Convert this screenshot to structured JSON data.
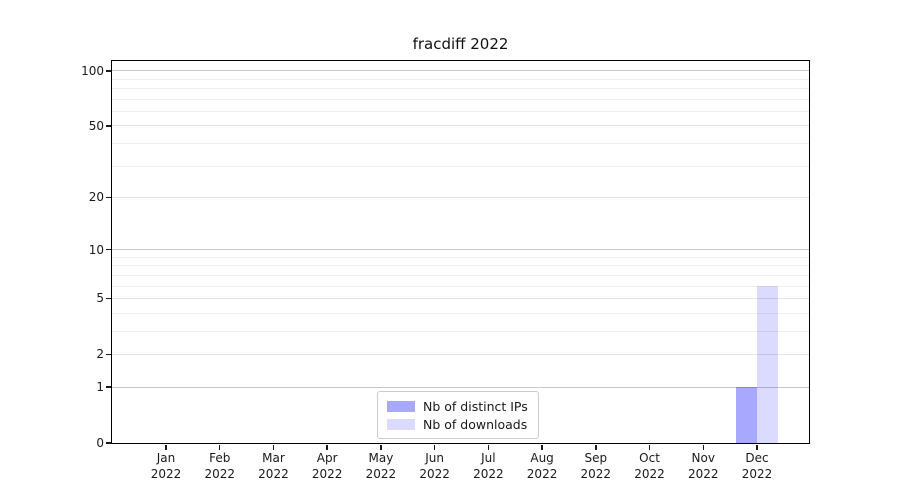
{
  "chart_data": {
    "type": "bar",
    "title": "fracdiff 2022",
    "categories": [
      "Jan 2022",
      "Feb 2022",
      "Mar 2022",
      "Apr 2022",
      "May 2022",
      "Jun 2022",
      "Jul 2022",
      "Aug 2022",
      "Sep 2022",
      "Oct 2022",
      "Nov 2022",
      "Dec 2022"
    ],
    "series": [
      {
        "name": "Nb of distinct IPs",
        "color": "rgba(0,0,255,0.34)",
        "values": [
          0,
          0,
          0,
          0,
          0,
          0,
          0,
          0,
          0,
          0,
          0,
          1
        ]
      },
      {
        "name": "Nb of downloads",
        "color": "rgba(0,0,255,0.14)",
        "values": [
          0,
          0,
          0,
          0,
          0,
          0,
          0,
          0,
          0,
          0,
          0,
          6
        ]
      }
    ],
    "y_scale": "log10(1+v)",
    "y_ticks": [
      0,
      1,
      2,
      5,
      10,
      20,
      50,
      100
    ],
    "ylim": [
      0,
      113
    ],
    "xlabel": "",
    "ylabel": "",
    "legend_position": "bottom-center",
    "grid": {
      "major": {
        "values": [
          1,
          10,
          100
        ],
        "color": "#c6c6c6"
      },
      "labeled_minor": {
        "values": [
          2,
          5,
          20,
          50
        ],
        "color": "#e4e4e4"
      },
      "minor": {
        "values": [
          3,
          4,
          6,
          7,
          8,
          9,
          30,
          40,
          60,
          70,
          80,
          90
        ],
        "color": "#efefef"
      }
    },
    "colors": {
      "spine": "#000000",
      "tick_label": "#1a1a1a",
      "title": "#111111",
      "legend_border": "#cccccc",
      "background": "#ffffff"
    }
  }
}
